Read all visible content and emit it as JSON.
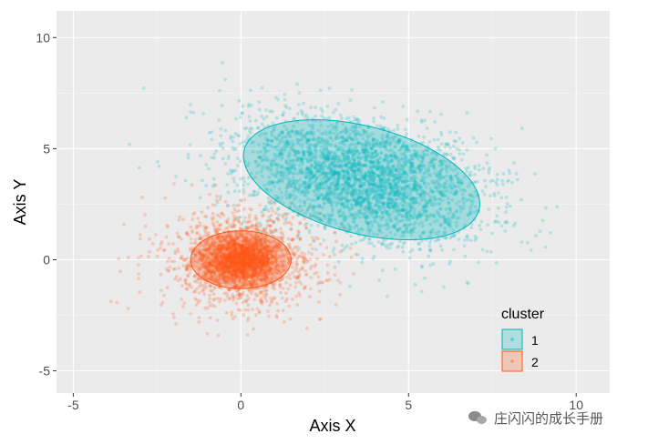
{
  "chart_data": {
    "type": "scatter",
    "xlabel": "Axis X",
    "ylabel": "Axis Y",
    "xlim": [
      -5.5,
      11
    ],
    "ylim": [
      -6,
      11.2
    ],
    "x_ticks": [
      -5,
      0,
      5,
      10
    ],
    "y_ticks": [
      -5,
      0,
      5,
      10
    ],
    "x_tick_labels": [
      "-5",
      "0",
      "5",
      "10"
    ],
    "y_tick_labels": [
      "-5",
      "0",
      "5",
      "10"
    ],
    "grid": true,
    "legend": {
      "title": "cluster",
      "position": "right",
      "entries": [
        {
          "label": "1",
          "color": "#00B5BE"
        },
        {
          "label": "2",
          "color": "#FF5616"
        }
      ]
    },
    "series": [
      {
        "name": "1",
        "color": "#00B5BE",
        "n_points": 3200,
        "center": [
          3.6,
          3.6
        ],
        "spread": [
          1.6,
          1.9
        ],
        "ellipse": {
          "center": [
            3.6,
            3.6
          ],
          "semi_axes": [
            3.8,
            2.3
          ],
          "angle_deg": -28
        }
      },
      {
        "name": "2",
        "color": "#FF5616",
        "n_points": 3000,
        "center": [
          0.0,
          0.0
        ],
        "spread": [
          1.0,
          1.0
        ],
        "ellipse": {
          "center": [
            0.0,
            0.0
          ],
          "semi_axes": [
            1.5,
            1.3
          ],
          "angle_deg": 0
        }
      }
    ]
  },
  "watermark": "庄闪闪的成长手册"
}
